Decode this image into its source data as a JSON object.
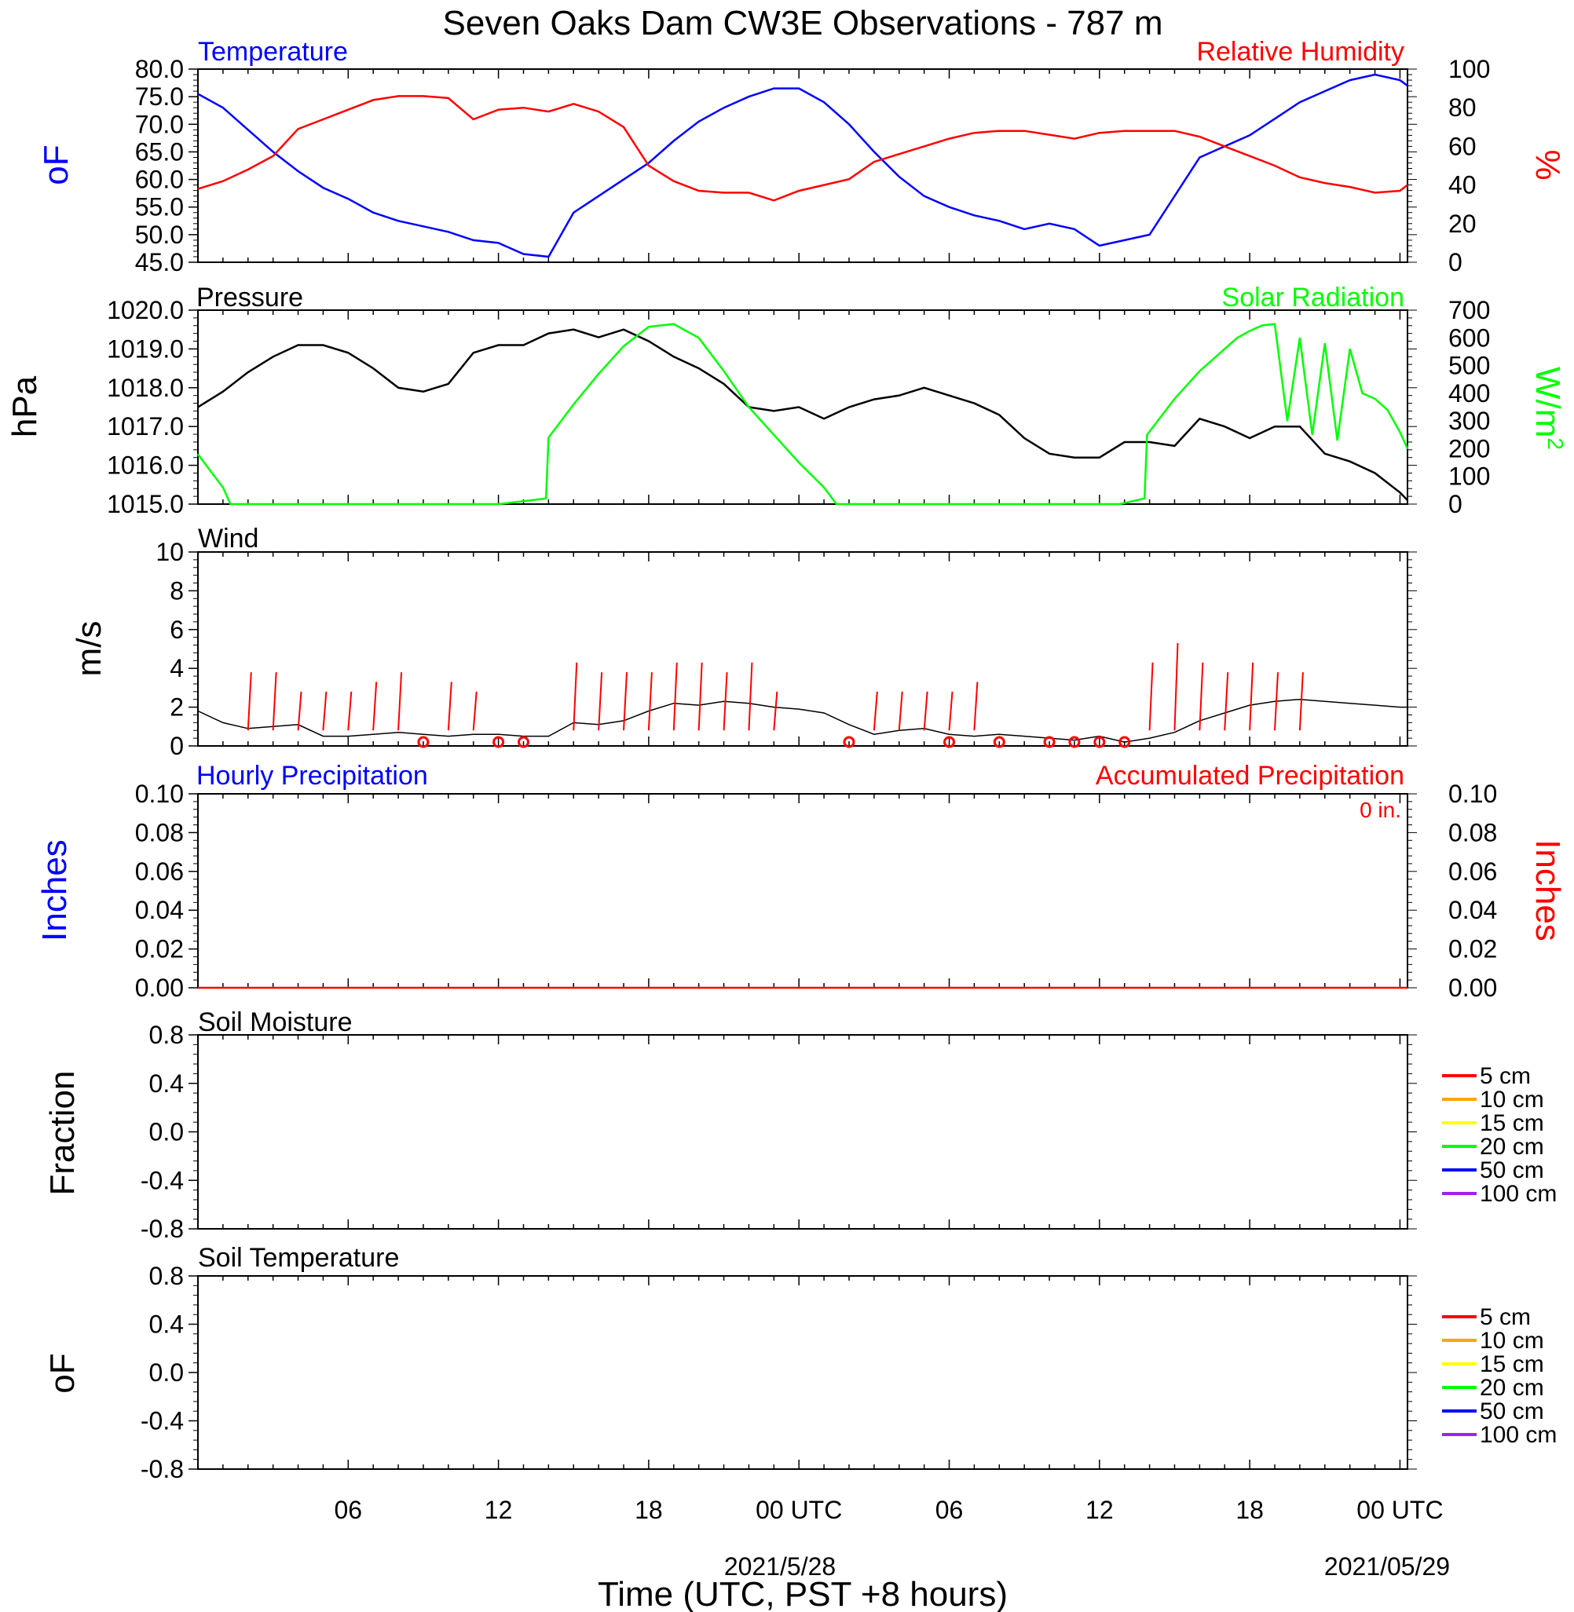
{
  "figure": {
    "title": "Seven Oaks Dam CW3E Observations - 787 m",
    "xlabel": "Time (UTC, PST +8 hours)",
    "x_ticks": [
      "06",
      "12",
      "18",
      "00 UTC",
      "06",
      "12",
      "18",
      "00 UTC"
    ],
    "date_labels": [
      "2021/5/28",
      "2021/05/29"
    ],
    "x_range_hours": [
      0,
      48.3
    ]
  },
  "colors": {
    "temperature": "#0000ff",
    "humidity": "#ff0000",
    "pressure": "#000000",
    "solar": "#00ff00",
    "wind": "#000000",
    "wind_barb": "#ff0000",
    "accum_precip": "#ff0000",
    "hourly_precip": "#0000ff"
  },
  "chart_data": [
    {
      "type": "line",
      "title_left": "Temperature",
      "title_right": "Relative Humidity",
      "ylabel_left": "oF",
      "ylabel_right": "%",
      "ylim_left": [
        45,
        80
      ],
      "yticks_left": [
        "80.0",
        "75.0",
        "70.0",
        "65.0",
        "60.0",
        "55.0",
        "50.0",
        "45.0"
      ],
      "ylim_right": [
        0,
        100
      ],
      "yticks_right": [
        "100",
        "80",
        "60",
        "40",
        "20",
        "0"
      ],
      "series": [
        {
          "name": "Temperature",
          "axis": "left",
          "x": [
            0,
            1,
            2,
            3,
            4,
            5,
            6,
            7,
            8,
            9,
            10,
            11,
            12,
            13,
            14,
            15,
            16,
            17,
            18,
            19,
            20,
            21,
            22,
            23,
            24,
            25,
            26,
            27,
            28,
            29,
            30,
            31,
            32,
            33,
            34,
            35,
            36,
            37,
            38,
            39,
            40,
            41,
            42,
            43,
            44,
            45,
            46,
            47,
            48,
            48.3
          ],
          "y": [
            75.5,
            73,
            69,
            65,
            61.5,
            58.5,
            56.5,
            54,
            52.5,
            51.5,
            50.5,
            49,
            48.5,
            46.5,
            46,
            54,
            57,
            60,
            63,
            67,
            70.5,
            73,
            75,
            76.5,
            76.5,
            74,
            70,
            65,
            60.5,
            57,
            55,
            53.5,
            52.5,
            51,
            52,
            51,
            48,
            49,
            50,
            57,
            64,
            66,
            68,
            71,
            74,
            76,
            78,
            79,
            78,
            77
          ]
        },
        {
          "name": "Relative Humidity",
          "axis": "right",
          "x": [
            0,
            1,
            2,
            3,
            4,
            5,
            6,
            7,
            8,
            9,
            10,
            11,
            12,
            13,
            14,
            15,
            16,
            17,
            18,
            19,
            20,
            21,
            22,
            23,
            24,
            25,
            26,
            27,
            28,
            29,
            30,
            31,
            32,
            33,
            34,
            35,
            36,
            37,
            38,
            39,
            40,
            41,
            42,
            43,
            44,
            45,
            46,
            47,
            48,
            48.3
          ],
          "y": [
            38,
            42,
            48,
            55,
            69,
            74,
            79,
            84,
            86,
            86,
            85,
            74,
            79,
            80,
            78,
            82,
            78,
            70,
            50,
            42,
            37,
            36,
            36,
            32,
            37,
            40,
            43,
            52,
            56,
            60,
            64,
            67,
            68,
            68,
            66,
            64,
            67,
            68,
            68,
            68,
            65,
            60,
            55,
            50,
            44,
            41,
            39,
            36,
            37,
            40
          ]
        }
      ]
    },
    {
      "type": "line",
      "title_left": "Pressure",
      "title_right": "Solar Radiation",
      "ylabel_left": "hPa",
      "ylabel_right": "W/m2",
      "ylim_left": [
        1015,
        1020
      ],
      "yticks_left": [
        "1020.0",
        "1019.0",
        "1018.0",
        "1017.0",
        "1016.0",
        "1015.0"
      ],
      "ylim_right": [
        0,
        700
      ],
      "yticks_right": [
        "700",
        "600",
        "500",
        "400",
        "300",
        "200",
        "100",
        "0"
      ],
      "series": [
        {
          "name": "Pressure",
          "axis": "left",
          "x": [
            0,
            1,
            2,
            3,
            4,
            5,
            6,
            7,
            8,
            9,
            10,
            11,
            12,
            13,
            14,
            15,
            16,
            17,
            18,
            19,
            20,
            21,
            22,
            23,
            24,
            25,
            26,
            27,
            28,
            29,
            30,
            31,
            32,
            33,
            34,
            35,
            36,
            37,
            38,
            39,
            40,
            41,
            42,
            43,
            44,
            45,
            46,
            47,
            48,
            48.3
          ],
          "y": [
            1017.5,
            1017.9,
            1018.4,
            1018.8,
            1019.1,
            1019.1,
            1018.9,
            1018.5,
            1018.0,
            1017.9,
            1018.1,
            1018.9,
            1019.1,
            1019.1,
            1019.4,
            1019.5,
            1019.3,
            1019.5,
            1019.2,
            1018.8,
            1018.5,
            1018.1,
            1017.5,
            1017.4,
            1017.5,
            1017.2,
            1017.5,
            1017.7,
            1017.8,
            1018.0,
            1017.8,
            1017.6,
            1017.3,
            1016.7,
            1016.3,
            1016.2,
            1016.2,
            1016.6,
            1016.6,
            1016.5,
            1017.2,
            1017.0,
            1016.7,
            1017.0,
            1017.0,
            1016.3,
            1016.1,
            1015.8,
            1015.3,
            1015.1
          ]
        },
        {
          "name": "Solar Radiation",
          "axis": "right",
          "x": [
            0,
            0.5,
            1,
            1.3,
            1.5,
            3,
            6,
            9,
            12,
            13.9,
            14.0,
            15,
            16,
            17,
            18,
            19,
            20,
            21,
            22,
            23,
            24,
            25,
            25.5,
            26,
            30,
            35,
            36.8,
            37.8,
            37.9,
            39,
            40,
            41,
            41.5,
            42,
            42.5,
            43,
            43.5,
            44,
            44.5,
            45,
            45.5,
            46,
            46.5,
            47,
            47.5,
            48,
            48.3
          ],
          "y": [
            180,
            120,
            60,
            0,
            0,
            0,
            0,
            0,
            0,
            20,
            240,
            360,
            470,
            570,
            640,
            650,
            600,
            480,
            350,
            250,
            150,
            60,
            0,
            0,
            0,
            0,
            0,
            20,
            250,
            380,
            480,
            560,
            600,
            625,
            645,
            650,
            300,
            600,
            250,
            580,
            230,
            560,
            400,
            380,
            340,
            260,
            200
          ]
        }
      ]
    },
    {
      "type": "line",
      "title_left": "Wind",
      "ylabel_left": "m/s",
      "ylim_left": [
        0,
        10
      ],
      "yticks_left": [
        "10",
        "8",
        "6",
        "4",
        "2",
        "0"
      ],
      "series": [
        {
          "name": "Wind",
          "axis": "left",
          "x": [
            0,
            1,
            2,
            3,
            4,
            5,
            6,
            7,
            8,
            9,
            10,
            11,
            12,
            13,
            14,
            15,
            16,
            17,
            18,
            19,
            20,
            21,
            22,
            23,
            24,
            25,
            26,
            27,
            28,
            29,
            30,
            31,
            32,
            33,
            34,
            35,
            36,
            37,
            38,
            39,
            40,
            41,
            42,
            43,
            44,
            45,
            46,
            47,
            48,
            48.3
          ],
          "y": [
            1.8,
            1.2,
            0.9,
            1.0,
            1.1,
            0.5,
            0.5,
            0.6,
            0.7,
            0.6,
            0.5,
            0.6,
            0.6,
            0.5,
            0.5,
            1.2,
            1.1,
            1.3,
            1.8,
            2.2,
            2.1,
            2.3,
            2.2,
            2.0,
            1.9,
            1.7,
            1.1,
            0.6,
            0.8,
            0.9,
            0.6,
            0.5,
            0.6,
            0.5,
            0.4,
            0.3,
            0.5,
            0.2,
            0.4,
            0.7,
            1.3,
            1.7,
            2.1,
            2.3,
            2.4,
            2.3,
            2.2,
            2.1,
            2.0,
            2.0
          ]
        }
      ],
      "barbs": {
        "speed_ms": [
          3.0,
          3.0,
          2.0,
          2.0,
          2.0,
          2.5,
          3.0,
          2.5,
          2.0,
          3.5,
          3.0,
          3.0,
          3.0,
          3.5,
          3.5,
          3.0,
          3.5,
          2.0,
          2.0,
          2.0,
          2.0,
          2.0,
          2.5,
          3.5,
          4.5,
          3.5,
          3.0,
          3.5,
          3.0,
          3.0
        ],
        "x": [
          2,
          3,
          4,
          5,
          6,
          7,
          8,
          10,
          11,
          15,
          16,
          17,
          18,
          19,
          20,
          21,
          22,
          23,
          27,
          28,
          29,
          30,
          31,
          38,
          39,
          40,
          41,
          42,
          43,
          44
        ]
      },
      "calm_markers_x": [
        9,
        12,
        13,
        26,
        30,
        32,
        34,
        35,
        36,
        37
      ]
    },
    {
      "type": "line",
      "title_left": "Hourly Precipitation",
      "title_right": "Accumulated Precipitation",
      "annotation": "0 in.",
      "ylabel_left": "Inches",
      "ylabel_right": "Inches",
      "ylim_left": [
        0,
        0.1
      ],
      "yticks_left": [
        "0.10",
        "0.08",
        "0.06",
        "0.04",
        "0.02",
        "0.00"
      ],
      "yticks_right": [
        "0.10",
        "0.08",
        "0.06",
        "0.04",
        "0.02",
        "0.00"
      ],
      "series": [
        {
          "name": "Accumulated Precipitation",
          "axis": "right",
          "x": [
            0,
            48.3
          ],
          "y": [
            0,
            0
          ]
        }
      ]
    },
    {
      "type": "line",
      "title_left": "Soil Moisture",
      "ylabel_left": "Fraction",
      "ylim_left": [
        -1,
        1
      ],
      "yticks_left": [
        "0.8",
        "0.4",
        "0.0",
        "-0.4",
        "-0.8"
      ],
      "legend": [
        {
          "name": "5 cm",
          "color": "#ff0000"
        },
        {
          "name": "10 cm",
          "color": "#ffa500"
        },
        {
          "name": "15 cm",
          "color": "#ffff00"
        },
        {
          "name": "20 cm",
          "color": "#00ff00"
        },
        {
          "name": "50 cm",
          "color": "#0000ff"
        },
        {
          "name": "100 cm",
          "color": "#a020f0"
        }
      ],
      "series": []
    },
    {
      "type": "line",
      "title_left": "Soil Temperature",
      "ylabel_left": "oF",
      "ylim_left": [
        -1,
        1
      ],
      "yticks_left": [
        "0.8",
        "0.4",
        "0.0",
        "-0.4",
        "-0.8"
      ],
      "legend": [
        {
          "name": "5 cm",
          "color": "#ff0000"
        },
        {
          "name": "10 cm",
          "color": "#ffa500"
        },
        {
          "name": "15 cm",
          "color": "#ffff00"
        },
        {
          "name": "20 cm",
          "color": "#00ff00"
        },
        {
          "name": "50 cm",
          "color": "#0000ff"
        },
        {
          "name": "100 cm",
          "color": "#a020f0"
        }
      ],
      "series": []
    }
  ]
}
